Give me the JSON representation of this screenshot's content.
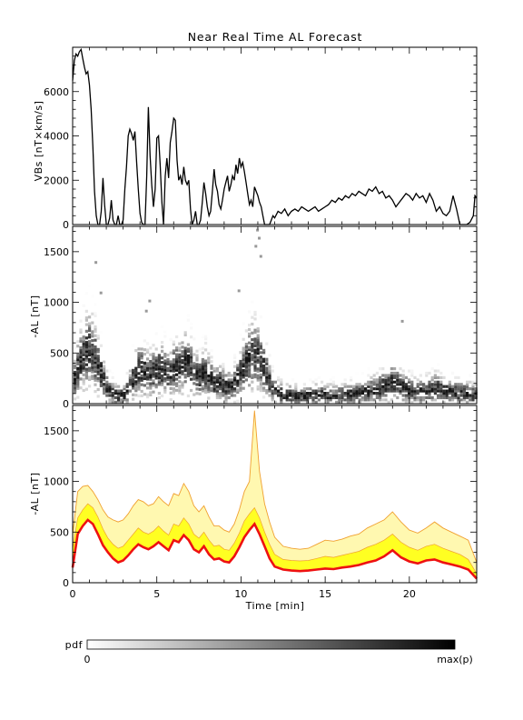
{
  "title": "Near Real Time AL Forecast",
  "colors": {
    "line": "#000000",
    "median": "#ee1111",
    "band_inner": "#ffff22",
    "band_outer": "#fff8b0",
    "band_edge": "#f0a030"
  },
  "chart_data": [
    {
      "type": "line",
      "panel": "top",
      "ylabel": "VBs [nT×km/s]",
      "xlim": [
        0,
        24
      ],
      "ylim": [
        0,
        8000
      ],
      "yticks": [
        0,
        2000,
        4000,
        6000
      ],
      "series": [
        {
          "x": [
            0,
            0.1,
            0.2,
            0.3,
            0.4,
            0.5,
            0.6,
            0.7,
            0.8,
            0.9,
            1.0,
            1.1,
            1.2,
            1.3,
            1.4,
            1.5,
            1.55,
            1.6,
            1.7,
            1.8,
            1.9,
            2.0,
            2.1,
            2.2,
            2.3,
            2.4,
            2.5,
            2.6,
            2.7,
            2.8,
            2.9,
            3.0,
            3.1,
            3.2,
            3.3,
            3.4,
            3.5,
            3.6,
            3.7,
            3.8,
            3.9,
            4.0,
            4.1,
            4.2,
            4.3,
            4.4,
            4.5,
            4.6,
            4.7,
            4.8,
            4.9,
            5.0,
            5.1,
            5.2,
            5.3,
            5.4,
            5.5,
            5.6,
            5.7,
            5.8,
            5.9,
            6.0,
            6.1,
            6.2,
            6.3,
            6.4,
            6.5,
            6.6,
            6.7,
            6.8,
            6.9,
            7.0,
            7.1,
            7.2,
            7.3,
            7.4,
            7.5,
            7.6,
            7.7,
            7.8,
            7.9,
            8.0,
            8.1,
            8.2,
            8.3,
            8.4,
            8.5,
            8.6,
            8.7,
            8.8,
            8.9,
            9.0,
            9.1,
            9.2,
            9.3,
            9.4,
            9.5,
            9.6,
            9.7,
            9.8,
            9.9,
            10.0,
            10.1,
            10.2,
            10.3,
            10.4,
            10.5,
            10.6,
            10.7,
            10.8,
            10.9,
            11.0,
            11.1,
            11.2,
            11.3,
            11.4,
            11.5,
            11.6,
            11.7,
            11.8,
            11.9,
            12.0,
            12.2,
            12.4,
            12.6,
            12.8,
            13.0,
            13.2,
            13.4,
            13.6,
            13.8,
            14.0,
            14.2,
            14.4,
            14.6,
            14.8,
            15.0,
            15.2,
            15.4,
            15.6,
            15.8,
            16.0,
            16.2,
            16.4,
            16.6,
            16.8,
            17.0,
            17.2,
            17.4,
            17.6,
            17.8,
            18.0,
            18.2,
            18.4,
            18.6,
            18.8,
            19.0,
            19.2,
            19.4,
            19.6,
            19.8,
            20.0,
            20.2,
            20.4,
            20.6,
            20.8,
            21.0,
            21.2,
            21.4,
            21.6,
            21.8,
            22.0,
            22.2,
            22.4,
            22.6,
            22.8,
            23.0,
            23.2,
            23.4,
            23.6,
            23.8,
            23.9,
            24.0
          ],
          "values": [
            6500,
            7400,
            7700,
            7600,
            7800,
            7900,
            7500,
            7100,
            6800,
            6900,
            6300,
            5200,
            3500,
            1500,
            400,
            0,
            0,
            0,
            600,
            2100,
            900,
            0,
            0,
            300,
            1100,
            200,
            0,
            0,
            400,
            0,
            0,
            200,
            1600,
            2600,
            4000,
            4300,
            4100,
            3800,
            4200,
            2800,
            1600,
            500,
            100,
            0,
            0,
            2200,
            5300,
            3100,
            1800,
            800,
            1600,
            3900,
            4000,
            2700,
            1000,
            0,
            2200,
            3000,
            2100,
            3700,
            4200,
            4800,
            4700,
            2900,
            2000,
            2200,
            1800,
            2600,
            2000,
            1800,
            2000,
            700,
            0,
            200,
            600,
            0,
            0,
            200,
            1000,
            1900,
            1400,
            800,
            400,
            600,
            1500,
            2500,
            1800,
            1500,
            900,
            700,
            1100,
            1600,
            1900,
            2200,
            1500,
            1800,
            2200,
            2000,
            2700,
            2300,
            3000,
            2600,
            2800,
            2400,
            1900,
            1400,
            900,
            1100,
            800,
            1700,
            1500,
            1300,
            1000,
            800,
            400,
            0,
            0,
            0,
            0,
            200,
            400,
            300,
            600,
            500,
            700,
            400,
            600,
            700,
            600,
            800,
            700,
            600,
            700,
            800,
            600,
            700,
            800,
            900,
            1100,
            1000,
            1200,
            1100,
            1300,
            1200,
            1400,
            1300,
            1500,
            1400,
            1300,
            1600,
            1500,
            1700,
            1400,
            1500,
            1200,
            1300,
            1100,
            800,
            1000,
            1200,
            1400,
            1300,
            1100,
            1400,
            1200,
            1300,
            1000,
            1400,
            1100,
            600,
            800,
            500,
            400,
            600,
            1300,
            700,
            0,
            0,
            0,
            100,
            400,
            1300,
            1200
          ]
        }
      ]
    },
    {
      "type": "heatmap",
      "panel": "middle",
      "ylabel": "-AL [nT]",
      "xlim": [
        0,
        24
      ],
      "ylim": [
        0,
        1750
      ],
      "yticks": [
        0,
        500,
        1000,
        1500
      ],
      "colorbar": {
        "label": "pdf",
        "min_label": "0",
        "max_label": "max(p)"
      },
      "ridge": {
        "x": [
          0,
          0.3,
          0.6,
          0.9,
          1.2,
          1.5,
          1.8,
          2.1,
          2.4,
          2.7,
          3.0,
          3.3,
          3.6,
          3.9,
          4.2,
          4.5,
          4.8,
          5.1,
          5.4,
          5.7,
          6.0,
          6.3,
          6.6,
          6.9,
          7.2,
          7.5,
          7.8,
          8.1,
          8.4,
          8.7,
          9.0,
          9.3,
          9.6,
          9.9,
          10.2,
          10.5,
          10.8,
          11.1,
          11.4,
          11.7,
          12.0,
          12.5,
          13.0,
          13.5,
          14.0,
          14.5,
          15.0,
          15.5,
          16.0,
          16.5,
          17.0,
          17.5,
          18.0,
          18.5,
          19.0,
          19.5,
          20.0,
          20.5,
          21.0,
          21.5,
          22.0,
          22.5,
          23.0,
          23.5,
          24.0
        ],
        "values": [
          200,
          380,
          470,
          520,
          460,
          340,
          200,
          110,
          70,
          60,
          80,
          150,
          260,
          330,
          300,
          280,
          310,
          330,
          300,
          260,
          350,
          340,
          400,
          360,
          270,
          250,
          300,
          230,
          180,
          190,
          160,
          150,
          200,
          290,
          380,
          440,
          470,
          400,
          300,
          170,
          100,
          70,
          60,
          60,
          60,
          70,
          70,
          60,
          70,
          80,
          90,
          110,
          130,
          170,
          200,
          150,
          120,
          100,
          120,
          140,
          110,
          100,
          90,
          80,
          60
        ]
      }
    },
    {
      "type": "area",
      "panel": "bottom",
      "xlabel": "Time [min]",
      "ylabel": "-AL [nT]",
      "xlim": [
        0,
        24
      ],
      "ylim": [
        0,
        1750
      ],
      "xticks": [
        0,
        5,
        10,
        15,
        20
      ],
      "yticks": [
        0,
        500,
        1000,
        1500
      ],
      "x": [
        0,
        0.3,
        0.6,
        0.9,
        1.2,
        1.5,
        1.8,
        2.1,
        2.4,
        2.7,
        3.0,
        3.3,
        3.6,
        3.9,
        4.2,
        4.5,
        4.8,
        5.1,
        5.4,
        5.7,
        6.0,
        6.3,
        6.6,
        6.9,
        7.2,
        7.5,
        7.8,
        8.1,
        8.4,
        8.7,
        9.0,
        9.3,
        9.6,
        9.9,
        10.2,
        10.5,
        10.8,
        11.1,
        11.4,
        11.7,
        12.0,
        12.5,
        13.0,
        13.5,
        14.0,
        14.5,
        15.0,
        15.5,
        16.0,
        16.5,
        17.0,
        17.5,
        18.0,
        18.5,
        19.0,
        19.5,
        20.0,
        20.5,
        21.0,
        21.5,
        22.0,
        22.5,
        23.0,
        23.5,
        24.0
      ],
      "series": [
        {
          "values": [
            150,
            480,
            560,
            620,
            580,
            480,
            370,
            300,
            240,
            200,
            220,
            270,
            330,
            380,
            350,
            330,
            360,
            400,
            360,
            320,
            420,
            400,
            470,
            420,
            330,
            300,
            360,
            280,
            230,
            240,
            210,
            200,
            260,
            350,
            450,
            520,
            580,
            480,
            360,
            240,
            160,
            130,
            120,
            115,
            120,
            130,
            140,
            135,
            150,
            160,
            175,
            200,
            220,
            260,
            320,
            250,
            210,
            190,
            220,
            230,
            200,
            180,
            160,
            130,
            40
          ]
        },
        {
          "values": [
            330,
            640,
            720,
            780,
            740,
            650,
            530,
            440,
            380,
            340,
            360,
            420,
            480,
            540,
            500,
            480,
            510,
            560,
            510,
            470,
            580,
            560,
            640,
            580,
            480,
            440,
            500,
            420,
            360,
            370,
            330,
            320,
            390,
            490,
            610,
            680,
            740,
            640,
            500,
            380,
            280,
            230,
            220,
            215,
            220,
            240,
            260,
            250,
            270,
            290,
            310,
            350,
            380,
            420,
            480,
            400,
            350,
            320,
            360,
            380,
            340,
            310,
            280,
            230,
            90
          ]
        },
        {
          "values": [
            480,
            900,
            950,
            960,
            900,
            820,
            720,
            650,
            620,
            600,
            620,
            680,
            760,
            820,
            800,
            760,
            780,
            850,
            800,
            760,
            880,
            860,
            980,
            900,
            760,
            700,
            760,
            650,
            560,
            560,
            520,
            500,
            580,
            720,
            900,
            1000,
            1700,
            1100,
            780,
            600,
            450,
            360,
            340,
            330,
            340,
            380,
            420,
            410,
            430,
            460,
            480,
            540,
            580,
            620,
            700,
            600,
            520,
            490,
            540,
            600,
            540,
            500,
            460,
            420,
            200
          ]
        }
      ]
    }
  ]
}
